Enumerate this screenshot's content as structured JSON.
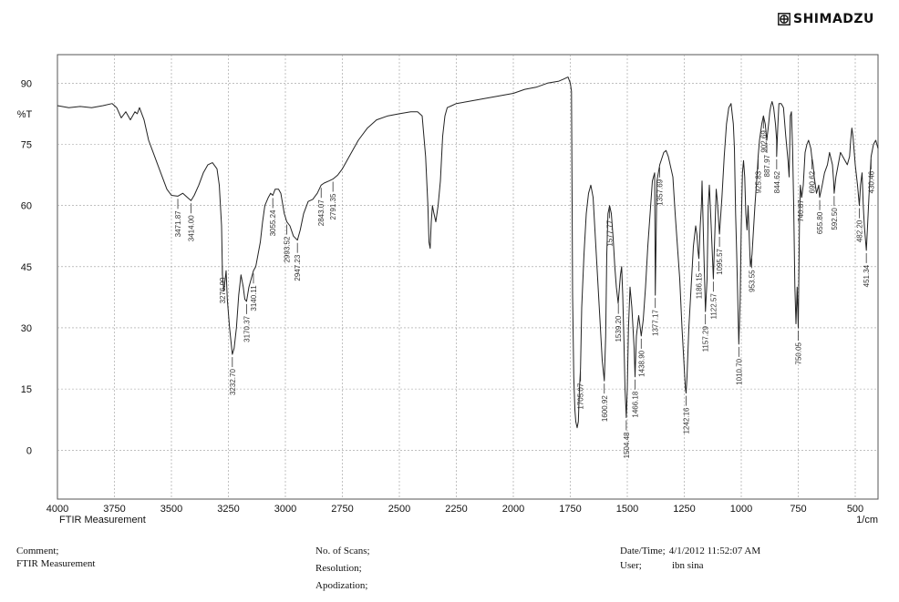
{
  "brand": {
    "name": "SHIMADZU",
    "icon": "shimadzu-logo-icon"
  },
  "chart_data": {
    "type": "line",
    "title": "",
    "xlabel": "1/cm",
    "ylabel": "%T",
    "x_caption": "FTIR Measurement",
    "xlim": [
      4000,
      400
    ],
    "ylim": [
      -12,
      97
    ],
    "x_ticks": [
      4000,
      3750,
      3500,
      3250,
      3000,
      2750,
      2500,
      2250,
      2000,
      1750,
      1500,
      1250,
      1000,
      750,
      500
    ],
    "y_ticks": [
      90,
      75,
      60,
      45,
      30,
      15,
      0
    ],
    "grid": true,
    "series": [
      {
        "name": "",
        "points": [
          [
            4000,
            84.5
          ],
          [
            3950,
            84
          ],
          [
            3900,
            84.3
          ],
          [
            3850,
            84
          ],
          [
            3800,
            84.5
          ],
          [
            3760,
            85
          ],
          [
            3740,
            84
          ],
          [
            3720,
            81.5
          ],
          [
            3700,
            83
          ],
          [
            3680,
            81
          ],
          [
            3660,
            83
          ],
          [
            3650,
            82.5
          ],
          [
            3640,
            84
          ],
          [
            3620,
            81
          ],
          [
            3600,
            76
          ],
          [
            3580,
            73
          ],
          [
            3560,
            70
          ],
          [
            3540,
            67
          ],
          [
            3520,
            64
          ],
          [
            3500,
            62.5
          ],
          [
            3471.87,
            62.3
          ],
          [
            3450,
            63
          ],
          [
            3430,
            62
          ],
          [
            3414,
            61.2
          ],
          [
            3400,
            62.5
          ],
          [
            3380,
            65
          ],
          [
            3360,
            68
          ],
          [
            3340,
            70
          ],
          [
            3320,
            70.5
          ],
          [
            3300,
            69
          ],
          [
            3290,
            65
          ],
          [
            3280,
            55
          ],
          [
            3276,
            43
          ],
          [
            3270,
            39
          ],
          [
            3260,
            44
          ],
          [
            3255,
            37
          ],
          [
            3245,
            30
          ],
          [
            3232.7,
            23.5
          ],
          [
            3225,
            25
          ],
          [
            3215,
            30
          ],
          [
            3205,
            38
          ],
          [
            3195,
            43
          ],
          [
            3185,
            40
          ],
          [
            3178,
            37
          ],
          [
            3170.37,
            36.5
          ],
          [
            3160,
            40
          ],
          [
            3150,
            42
          ],
          [
            3140.11,
            44
          ],
          [
            3130,
            45
          ],
          [
            3110,
            51
          ],
          [
            3100,
            56
          ],
          [
            3090,
            60
          ],
          [
            3075,
            62
          ],
          [
            3065,
            63
          ],
          [
            3055.24,
            62.5
          ],
          [
            3045,
            64
          ],
          [
            3030,
            64
          ],
          [
            3020,
            63
          ],
          [
            3005,
            58
          ],
          [
            2993.52,
            56
          ],
          [
            2980,
            55
          ],
          [
            2965,
            52.5
          ],
          [
            2947.23,
            51.5
          ],
          [
            2935,
            54
          ],
          [
            2920,
            58
          ],
          [
            2900,
            61
          ],
          [
            2880,
            61.5
          ],
          [
            2860,
            63
          ],
          [
            2843.07,
            65
          ],
          [
            2830,
            65.5
          ],
          [
            2810,
            66
          ],
          [
            2791.35,
            66.5
          ],
          [
            2770,
            67.5
          ],
          [
            2750,
            69
          ],
          [
            2720,
            72
          ],
          [
            2680,
            76
          ],
          [
            2640,
            79
          ],
          [
            2600,
            81
          ],
          [
            2550,
            82
          ],
          [
            2500,
            82.5
          ],
          [
            2450,
            83
          ],
          [
            2420,
            83
          ],
          [
            2400,
            82
          ],
          [
            2385,
            72
          ],
          [
            2375,
            60
          ],
          [
            2370,
            51
          ],
          [
            2365,
            49.5
          ],
          [
            2360,
            56
          ],
          [
            2355,
            60
          ],
          [
            2350,
            58.5
          ],
          [
            2340,
            56
          ],
          [
            2330,
            60
          ],
          [
            2320,
            66
          ],
          [
            2310,
            77
          ],
          [
            2300,
            82
          ],
          [
            2290,
            84
          ],
          [
            2270,
            84.5
          ],
          [
            2250,
            85
          ],
          [
            2200,
            85.5
          ],
          [
            2150,
            86
          ],
          [
            2100,
            86.5
          ],
          [
            2050,
            87
          ],
          [
            2000,
            87.5
          ],
          [
            1950,
            88.5
          ],
          [
            1900,
            89
          ],
          [
            1850,
            90
          ],
          [
            1800,
            90.5
          ],
          [
            1780,
            91
          ],
          [
            1760,
            91.5
          ],
          [
            1750,
            90
          ],
          [
            1745,
            88
          ],
          [
            1742,
            60
          ],
          [
            1740,
            38
          ],
          [
            1735,
            18
          ],
          [
            1730,
            10
          ],
          [
            1726,
            7
          ],
          [
            1720,
            5.5
          ],
          [
            1715,
            7
          ],
          [
            1710,
            15
          ],
          [
            1705.07,
            20
          ],
          [
            1700,
            35
          ],
          [
            1690,
            48
          ],
          [
            1680,
            58
          ],
          [
            1670,
            63
          ],
          [
            1660,
            65
          ],
          [
            1650,
            62
          ],
          [
            1640,
            52
          ],
          [
            1630,
            42
          ],
          [
            1620,
            32
          ],
          [
            1610,
            22
          ],
          [
            1600.92,
            17
          ],
          [
            1595,
            28
          ],
          [
            1590,
            48
          ],
          [
            1585,
            58
          ],
          [
            1577.77,
            60
          ],
          [
            1570,
            58
          ],
          [
            1562,
            52
          ],
          [
            1555,
            45
          ],
          [
            1548,
            40
          ],
          [
            1540,
            36
          ],
          [
            1530,
            43
          ],
          [
            1525,
            45
          ],
          [
            1520,
            38
          ],
          [
            1515,
            27
          ],
          [
            1510,
            15
          ],
          [
            1504.48,
            8
          ],
          [
            1500,
            15
          ],
          [
            1495,
            30
          ],
          [
            1488,
            40
          ],
          [
            1480,
            35
          ],
          [
            1470,
            25
          ],
          [
            1466.18,
            18
          ],
          [
            1460,
            28
          ],
          [
            1450,
            33
          ],
          [
            1438.9,
            28
          ],
          [
            1430,
            32
          ],
          [
            1420,
            40
          ],
          [
            1410,
            50
          ],
          [
            1400,
            58
          ],
          [
            1390,
            66
          ],
          [
            1380,
            68
          ],
          [
            1377.17,
            38
          ],
          [
            1370,
            66
          ],
          [
            1357.69,
            70
          ],
          [
            1340,
            73
          ],
          [
            1330,
            73.5
          ],
          [
            1320,
            72
          ],
          [
            1300,
            67
          ],
          [
            1290,
            58
          ],
          [
            1280,
            50
          ],
          [
            1270,
            42
          ],
          [
            1260,
            30
          ],
          [
            1250,
            20
          ],
          [
            1245,
            15
          ],
          [
            1242.16,
            14
          ],
          [
            1238,
            18
          ],
          [
            1230,
            30
          ],
          [
            1220,
            40
          ],
          [
            1210,
            50
          ],
          [
            1200,
            55
          ],
          [
            1195,
            53
          ],
          [
            1190,
            49
          ],
          [
            1186.15,
            47
          ],
          [
            1180,
            55
          ],
          [
            1175,
            60
          ],
          [
            1172,
            66
          ],
          [
            1165,
            50
          ],
          [
            1157.29,
            34
          ],
          [
            1150,
            42
          ],
          [
            1145,
            60
          ],
          [
            1140,
            65
          ],
          [
            1132,
            55
          ],
          [
            1122.57,
            42
          ],
          [
            1115,
            55
          ],
          [
            1110,
            64
          ],
          [
            1105,
            61
          ],
          [
            1095.57,
            53
          ],
          [
            1085,
            62
          ],
          [
            1075,
            72
          ],
          [
            1065,
            80
          ],
          [
            1055,
            84
          ],
          [
            1045,
            85
          ],
          [
            1035,
            80
          ],
          [
            1030,
            74
          ],
          [
            1025,
            58
          ],
          [
            1020,
            48
          ],
          [
            1010.7,
            26
          ],
          [
            1005,
            37
          ],
          [
            1000,
            55
          ],
          [
            995,
            68
          ],
          [
            990,
            71
          ],
          [
            985,
            67
          ],
          [
            980,
            58
          ],
          [
            975,
            54
          ],
          [
            970,
            60
          ],
          [
            965,
            52
          ],
          [
            960,
            45
          ],
          [
            953,
            48
          ],
          [
            940,
            60
          ],
          [
            930,
            68
          ],
          [
            925.83,
            72
          ],
          [
            920,
            76
          ],
          [
            910,
            80
          ],
          [
            902.69,
            82
          ],
          [
            895,
            80
          ],
          [
            887.97,
            76
          ],
          [
            880,
            80
          ],
          [
            875,
            83
          ],
          [
            870,
            84.5
          ],
          [
            865,
            85.5
          ],
          [
            858,
            84
          ],
          [
            850,
            80
          ],
          [
            845,
            76
          ],
          [
            844.62,
            72
          ],
          [
            840,
            79
          ],
          [
            835,
            85
          ],
          [
            825,
            85
          ],
          [
            815,
            84
          ],
          [
            805,
            77
          ],
          [
            795,
            71
          ],
          [
            790,
            67
          ],
          [
            785,
            82
          ],
          [
            780,
            83
          ],
          [
            775,
            74
          ],
          [
            770,
            60
          ],
          [
            765,
            40
          ],
          [
            760,
            31
          ],
          [
            755,
            40
          ],
          [
            750.05,
            30
          ],
          [
            745,
            55
          ],
          [
            740.87,
            65
          ],
          [
            735,
            62
          ],
          [
            728,
            65
          ],
          [
            720,
            73
          ],
          [
            712,
            75
          ],
          [
            705,
            76
          ],
          [
            695,
            74
          ],
          [
            690.62,
            72
          ],
          [
            685,
            70
          ],
          [
            680,
            67
          ],
          [
            670,
            63
          ],
          [
            660,
            65
          ],
          [
            655.8,
            62
          ],
          [
            645,
            65
          ],
          [
            635,
            68
          ],
          [
            622,
            70
          ],
          [
            613,
            73
          ],
          [
            600,
            70
          ],
          [
            595,
            66
          ],
          [
            592.5,
            63
          ],
          [
            585,
            67
          ],
          [
            575,
            70
          ],
          [
            565,
            73
          ],
          [
            555,
            72
          ],
          [
            545,
            71
          ],
          [
            535,
            70
          ],
          [
            525,
            72
          ],
          [
            520,
            76
          ],
          [
            515,
            79
          ],
          [
            510,
            77
          ],
          [
            500,
            70
          ],
          [
            490,
            65
          ],
          [
            482.2,
            60
          ],
          [
            477,
            65
          ],
          [
            470,
            68
          ],
          [
            465,
            60
          ],
          [
            460,
            55
          ],
          [
            451.34,
            49
          ],
          [
            447,
            54
          ],
          [
            440,
            62
          ],
          [
            430.46,
            72
          ],
          [
            420,
            75
          ],
          [
            410,
            76
          ],
          [
            400,
            74
          ]
        ]
      }
    ],
    "peak_labels": [
      3471.87,
      3414.0,
      3276.99,
      3232.7,
      3170.37,
      3140.11,
      3055.24,
      2993.52,
      2947.23,
      2843.07,
      2791.35,
      1705.07,
      1600.92,
      1577.77,
      1539.2,
      1504.48,
      1466.18,
      1438.9,
      1377.17,
      1357.69,
      1242.16,
      1186.15,
      1157.29,
      1122.57,
      1095.57,
      1010.7,
      953.55,
      925.83,
      902.69,
      887.97,
      844.62,
      750.05,
      740.87,
      690.62,
      655.8,
      592.5,
      482.2,
      451.34,
      430.46
    ],
    "peak_label_texts": [
      "3471.87",
      "3414.00",
      "3276.99",
      "3232.70",
      "3170.37",
      "3140.11",
      "3055.24",
      "2993.52",
      "2947.23",
      "2843.07",
      "2791.35",
      "1705.07",
      "1600.92",
      "1577.77",
      "1539.20",
      "1504.48",
      "1466.18",
      "1438.90",
      "1377.17",
      "1357.69",
      "1242.16",
      "1186.15",
      "1157.29",
      "1122.57",
      "1095.57",
      "1010.70",
      "953.55",
      "925.83",
      "902.69",
      "887.97",
      "844.62",
      "750.05",
      "740.87",
      "690.62",
      "655.80",
      "592.50",
      "482.20",
      "451.34",
      "430.46"
    ]
  },
  "footer": {
    "comment_label": "Comment;",
    "comment_value": "FTIR Measurement",
    "scans_label": "No. of Scans;",
    "resolution_label": "Resolution;",
    "apodization_label": "Apodization;",
    "datetime_label": "Date/Time;",
    "datetime_value": "4/1/2012 11:52:07 AM",
    "user_label": "User;",
    "user_value": "ibn sina"
  },
  "colors": {
    "line": "#222222",
    "grid": "#9a9a9a",
    "label": "#333333"
  }
}
